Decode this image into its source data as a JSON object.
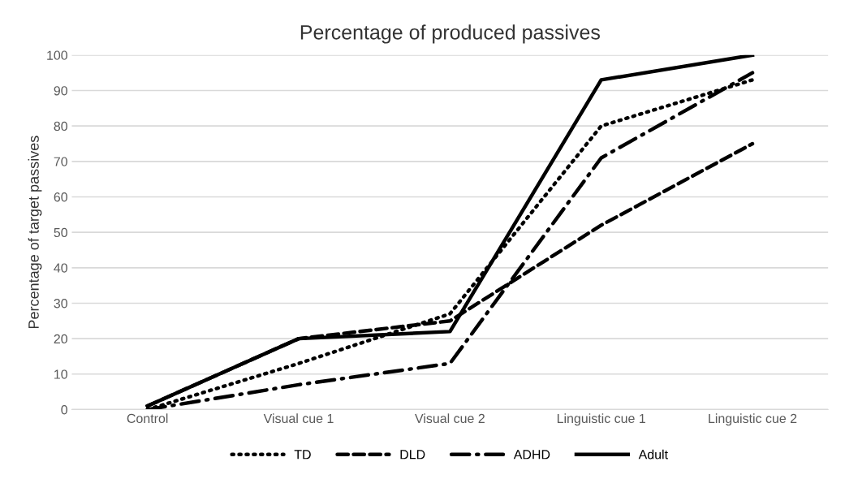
{
  "chart_data": {
    "type": "line",
    "title": "Percentage of produced passives",
    "ylabel": "Percentage of target passives",
    "categories": [
      "Control",
      "Visual cue 1",
      "Visual cue 2",
      "Linguistic cue 1",
      "Linguistic cue 2"
    ],
    "ylim": [
      0,
      100
    ],
    "yticks": [
      0,
      10,
      20,
      30,
      40,
      50,
      60,
      70,
      80,
      90,
      100
    ],
    "grid": "y",
    "legend": "bottom",
    "series": [
      {
        "name": "TD",
        "color": "#000000",
        "line_style": "dotted",
        "values": [
          0,
          13,
          27,
          80,
          93
        ]
      },
      {
        "name": "DLD",
        "color": "#000000",
        "line_style": "dashed",
        "values": [
          1,
          20,
          25,
          52,
          75
        ]
      },
      {
        "name": "ADHD",
        "color": "#000000",
        "line_style": "dashdot",
        "values": [
          0,
          7,
          13,
          71,
          95
        ]
      },
      {
        "name": "Adult",
        "color": "#000000",
        "line_style": "solid",
        "values": [
          1,
          20,
          22,
          93,
          100
        ]
      }
    ]
  }
}
